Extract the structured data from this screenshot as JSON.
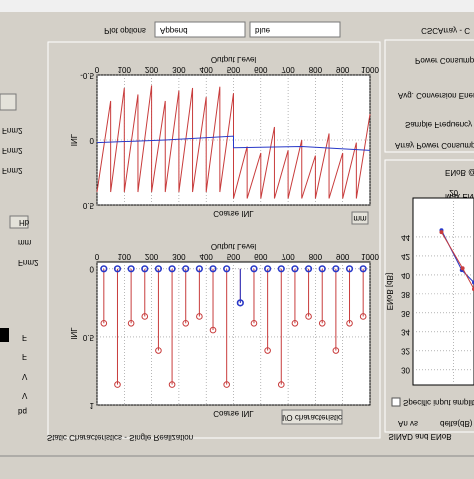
{
  "header": {
    "plot_options": "Plot options",
    "mode": "Append",
    "color": "blue",
    "app_title": "CSCArray - C"
  },
  "panels": {
    "static": "Static Characteristics - Single Realization",
    "sinad": "SINAD and ENoB"
  },
  "buttons": {
    "mm_top": "mm",
    "io": "I/O characteristic"
  },
  "left_labels": [
    "Fnm2",
    "Fnm2",
    "Fnm2",
    "Hb",
    "mm",
    "Fnm2",
    "F",
    "F",
    "V",
    "V",
    "bq"
  ],
  "right_labels": [
    "Power Consumption",
    "Avg. Conversion Energy",
    "Sample Frequency",
    "Array Power Consumption",
    "ENoB @ An",
    "Max ENoB",
    "Specific input amplitude",
    "An vs",
    "delta(dB)"
  ],
  "chart_data": [
    {
      "type": "line",
      "xlabel": "Output Level",
      "title": "Coarse INL",
      "ylabel": "INL",
      "xlim": [
        0,
        1000
      ],
      "xticks": [
        0,
        100,
        200,
        300,
        400,
        500,
        600,
        700,
        800,
        900,
        1000
      ],
      "ylim": [
        -0.5,
        0.5
      ],
      "yticks": [
        -0.5,
        0,
        0.5
      ],
      "grid": true,
      "series": [
        {
          "color": "#c83c3c",
          "x": [
            0,
            50,
            50,
            100,
            100,
            150,
            150,
            200,
            200,
            250,
            250,
            300,
            300,
            350,
            350,
            400,
            400,
            450,
            450,
            500,
            500,
            550,
            550,
            600,
            600,
            650,
            650,
            700,
            700,
            750,
            750,
            800,
            800,
            850,
            850,
            900,
            900,
            950,
            950,
            1000
          ],
          "values": [
            0.4,
            -0.3,
            0.4,
            -0.4,
            0.4,
            -0.35,
            0.4,
            -0.42,
            0.4,
            -0.3,
            0.4,
            -0.38,
            0.4,
            -0.4,
            0.4,
            -0.33,
            0.4,
            -0.41,
            0.4,
            -0.36,
            0.45,
            0.05,
            0.45,
            0.1,
            0.45,
            -0.1,
            0.45,
            0.08,
            0.45,
            0,
            0.45,
            0.12,
            0.45,
            -0.05,
            0.45,
            0.1,
            0.45,
            0.02,
            0.45,
            -0.2
          ]
        },
        {
          "color": "#2838c8",
          "x": [
            0,
            250,
            500,
            500,
            750,
            1000
          ],
          "values": [
            0.02,
            0.0,
            -0.03,
            0.06,
            0.05,
            0.08
          ]
        }
      ]
    },
    {
      "type": "stem",
      "xlabel": "Output Level",
      "title": "Coarse INL",
      "ylabel": "INL",
      "xlim": [
        0,
        1000
      ],
      "xticks": [
        0,
        100,
        200,
        300,
        400,
        500,
        600,
        700,
        800,
        900,
        1000
      ],
      "ylim": [
        -0.05,
        1
      ],
      "yticks": [
        0,
        0.5,
        1
      ],
      "grid": true,
      "x": [
        25,
        75,
        125,
        175,
        225,
        275,
        325,
        375,
        425,
        475,
        525,
        575,
        625,
        675,
        725,
        775,
        825,
        875,
        925,
        975
      ],
      "series": [
        {
          "color": "#c83c3c",
          "values": [
            0.4,
            0.85,
            0.4,
            0.35,
            0.6,
            0.85,
            0.4,
            0.35,
            0.45,
            0.85,
            0.25,
            0.4,
            0.6,
            0.85,
            0.4,
            0.35,
            0.4,
            0.6,
            0.4,
            0.35
          ]
        },
        {
          "color": "#2838c8",
          "values": [
            0,
            0,
            0,
            0,
            0,
            0,
            0,
            0,
            0,
            0,
            0.25,
            0,
            0,
            0,
            0,
            0,
            0,
            0,
            0,
            0
          ]
        }
      ]
    },
    {
      "type": "line",
      "ylabel": "ENoB [dB]",
      "xlim": [
        10,
        25
      ],
      "xticks": [
        20
      ],
      "ylim": [
        28.4,
        48.1
      ],
      "yticks": [
        30,
        32,
        34,
        36,
        38,
        40,
        42,
        44
      ],
      "grid": true,
      "series": [
        {
          "color": "#2838c8",
          "x": [
            17,
            22,
            25
          ],
          "values": [
            44.7,
            40.5,
            39.2
          ]
        },
        {
          "color": "#c83c3c",
          "x": [
            17,
            22.2,
            25
          ],
          "values": [
            44.5,
            40.7,
            38.5
          ]
        }
      ]
    }
  ]
}
